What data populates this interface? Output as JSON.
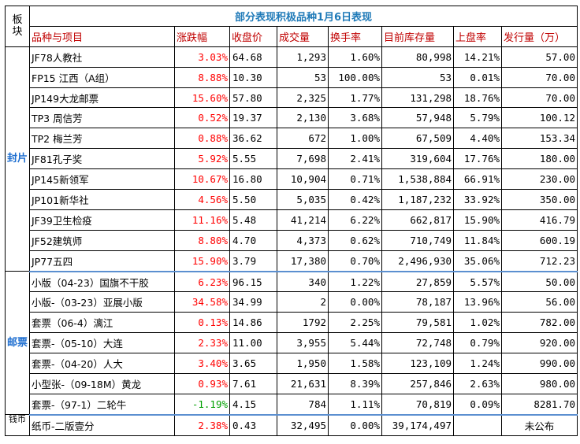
{
  "title": "部分表现积极品种1月6日表现",
  "corner_label": "板块",
  "headers": [
    "品种与项目",
    "涨跌幅",
    "收盘价",
    "成交量",
    "换手率",
    "目前库存量",
    "上盘率",
    "发行量（万）"
  ],
  "sections": [
    {
      "label": "封片",
      "rows": [
        {
          "name": "JF78人教社",
          "change": "3.03%",
          "close": "64.68",
          "volume": "1,293",
          "turnover": "1.60%",
          "stock": "80,998",
          "rate": "14.21%",
          "issue": "57.00"
        },
        {
          "name": "FP15 江西（A组）",
          "change": "8.88%",
          "close": "10.30",
          "volume": "53",
          "turnover": "100.00%",
          "stock": "53",
          "rate": "0.01%",
          "issue": "70.00"
        },
        {
          "name": "JP149大龙邮票",
          "change": "15.60%",
          "close": "57.80",
          "volume": "2,325",
          "turnover": "1.77%",
          "stock": "131,298",
          "rate": "18.76%",
          "issue": "70.00"
        },
        {
          "name": "TP3 周信芳",
          "change": "0.52%",
          "close": "19.37",
          "volume": "2,130",
          "turnover": "3.68%",
          "stock": "57,948",
          "rate": "5.79%",
          "issue": "100.12"
        },
        {
          "name": "TP2 梅兰芳",
          "change": "0.88%",
          "close": "36.62",
          "volume": "672",
          "turnover": "1.00%",
          "stock": "67,509",
          "rate": "4.40%",
          "issue": "153.34"
        },
        {
          "name": "JF81孔子奖",
          "change": "5.92%",
          "close": "5.55",
          "volume": "7,698",
          "turnover": "2.41%",
          "stock": "319,604",
          "rate": "17.76%",
          "issue": "180.00"
        },
        {
          "name": "JP145新领军",
          "change": "10.67%",
          "close": "16.80",
          "volume": "10,904",
          "turnover": "0.71%",
          "stock": "1,538,884",
          "rate": "66.91%",
          "issue": "230.00"
        },
        {
          "name": "JP101新华社",
          "change": "4.56%",
          "close": "5.50",
          "volume": "5,035",
          "turnover": "0.42%",
          "stock": "1,187,232",
          "rate": "33.92%",
          "issue": "350.00"
        },
        {
          "name": "JF39卫生检疫",
          "change": "11.16%",
          "close": "5.48",
          "volume": "41,214",
          "turnover": "6.22%",
          "stock": "662,817",
          "rate": "15.90%",
          "issue": "416.79"
        },
        {
          "name": "JF52建筑师",
          "change": "8.80%",
          "close": "4.70",
          "volume": "4,373",
          "turnover": "0.62%",
          "stock": "710,749",
          "rate": "11.84%",
          "issue": "600.19"
        },
        {
          "name": "JP77五四",
          "change": "15.90%",
          "close": "3.79",
          "volume": "17,380",
          "turnover": "0.70%",
          "stock": "2,496,930",
          "rate": "35.06%",
          "issue": "712.23"
        }
      ]
    },
    {
      "label": "邮票",
      "rows": [
        {
          "name": "小版（04-23）国旗不干胶",
          "change": "6.23%",
          "close": "96.15",
          "volume": "340",
          "turnover": "1.22%",
          "stock": "27,859",
          "rate": "5.57%",
          "issue": "50.00"
        },
        {
          "name": "小版-（03-23）亚展小版",
          "change": "34.58%",
          "close": "34.99",
          "volume": "2",
          "turnover": "0.00%",
          "stock": "78,187",
          "rate": "13.96%",
          "issue": "56.00"
        },
        {
          "name": "套票（06-4）漓江",
          "change": "0.13%",
          "close": "14.86",
          "volume": "1792",
          "turnover": "2.25%",
          "stock": "79,581",
          "rate": "1.02%",
          "issue": "782.00"
        },
        {
          "name": "套票-（05-10）大连",
          "change": "2.33%",
          "close": "11.00",
          "volume": "3,955",
          "turnover": "5.44%",
          "stock": "72,748",
          "rate": "0.79%",
          "issue": "920.00"
        },
        {
          "name": "套票-（04-20）人大",
          "change": "3.40%",
          "close": "3.65",
          "volume": "1,950",
          "turnover": "1.58%",
          "stock": "123,109",
          "rate": "1.24%",
          "issue": "990.00"
        },
        {
          "name": "小型张-（09-18M）黄龙",
          "change": "0.93%",
          "close": "7.61",
          "volume": "21,631",
          "turnover": "8.39%",
          "stock": "257,846",
          "rate": "2.63%",
          "issue": "980.00"
        },
        {
          "name": "套票-（97-1）二轮牛",
          "change": "-1.19%",
          "close": "4.15",
          "volume": "784",
          "turnover": "1.11%",
          "stock": "70,819",
          "rate": "0.09%",
          "issue": "8281.70"
        }
      ]
    },
    {
      "label": "钱币",
      "rows": [
        {
          "name": "纸币-二版壹分",
          "change": "2.38%",
          "close": "0.43",
          "volume": "32,495",
          "turnover": "0.00%",
          "stock": "39,174,497",
          "rate": "",
          "issue": "未公布"
        }
      ]
    }
  ]
}
